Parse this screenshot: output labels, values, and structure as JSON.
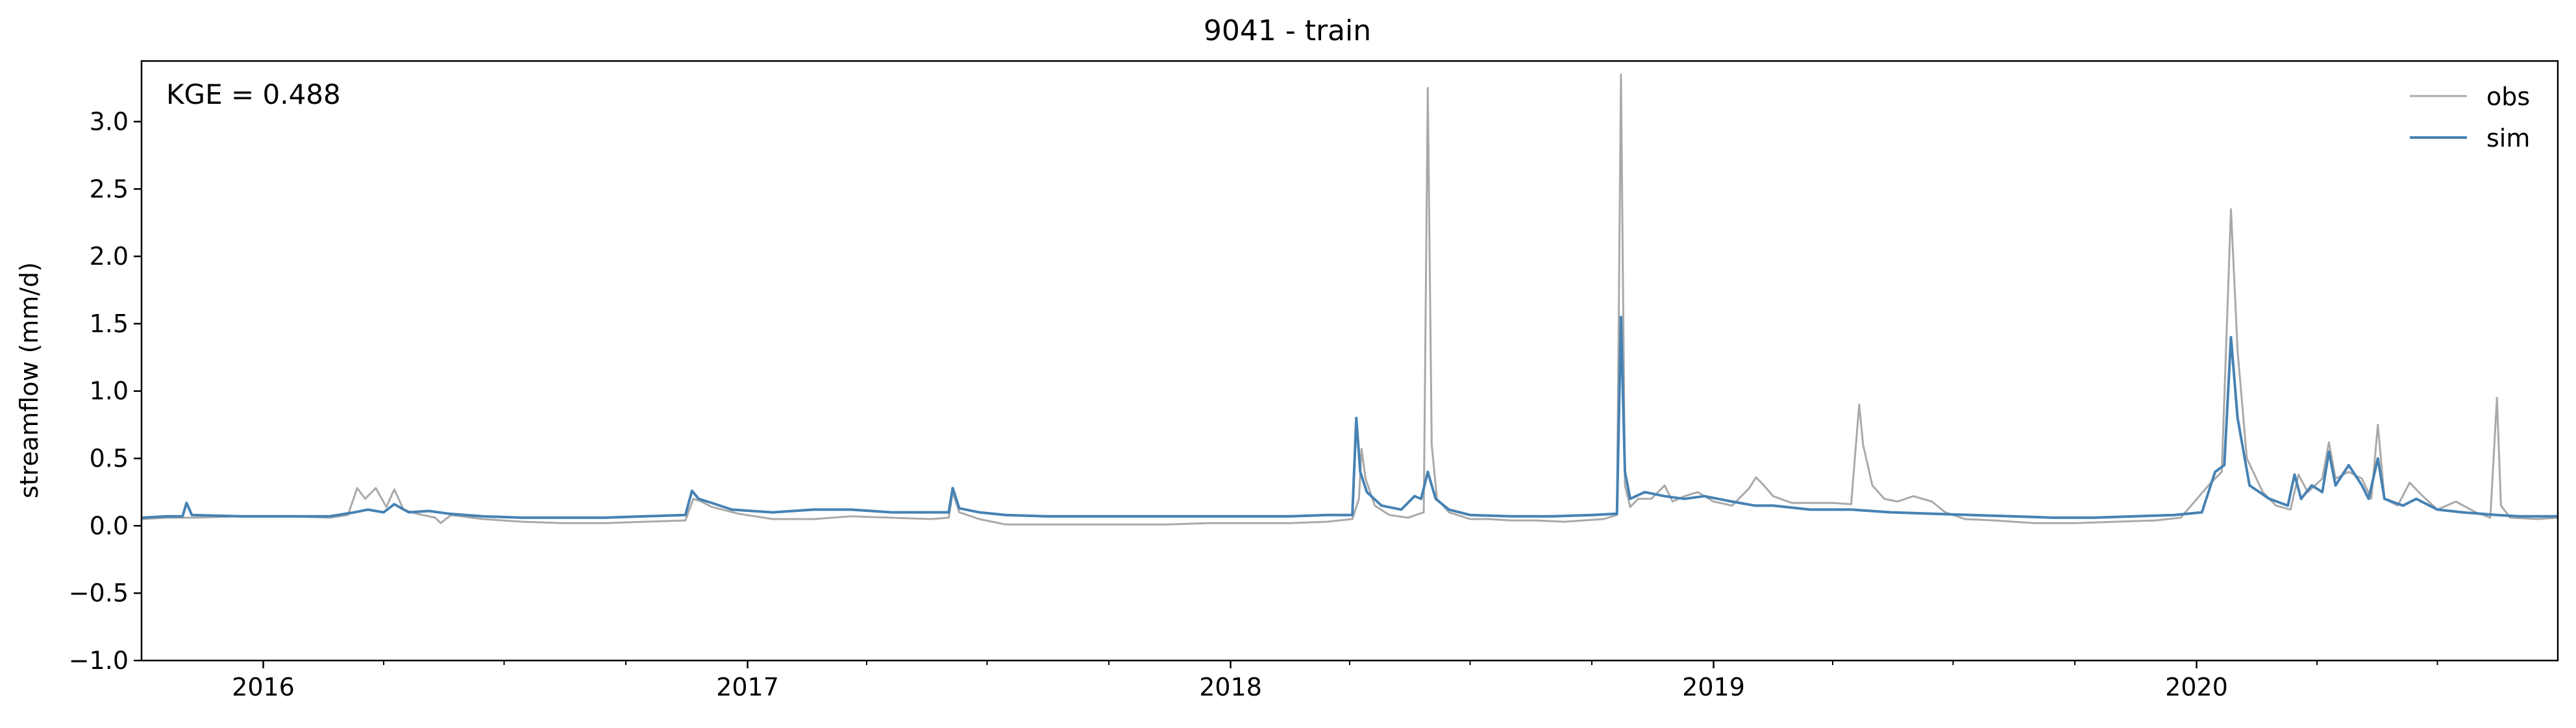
{
  "chart_data": {
    "type": "line",
    "title": "9041 - train",
    "xlabel": "",
    "ylabel": "streamflow (mm/d)",
    "annotation": "KGE = 0.488",
    "xlim": [
      "2015-10-01",
      "2020-09-30"
    ],
    "ylim": [
      -1.0,
      3.45
    ],
    "yticks": [
      -1.0,
      -0.5,
      0.0,
      0.5,
      1.0,
      1.5,
      2.0,
      2.5,
      3.0
    ],
    "ytick_labels": [
      "−1.0",
      "−0.5",
      "0.0",
      "0.5",
      "1.0",
      "1.5",
      "2.0",
      "2.5",
      "3.0"
    ],
    "xticks": [
      "2016-01-01",
      "2017-01-01",
      "2018-01-01",
      "2019-01-01",
      "2020-01-01"
    ],
    "xtick_labels": [
      "2016",
      "2017",
      "2018",
      "2019",
      "2020"
    ],
    "grid": false,
    "legend_position": "top-right",
    "series": [
      {
        "name": "obs",
        "color": "#a9a9a9",
        "points": [
          [
            "2015-10-01",
            0.05
          ],
          [
            "2015-10-20",
            0.06
          ],
          [
            "2015-11-10",
            0.06
          ],
          [
            "2015-12-15",
            0.07
          ],
          [
            "2016-01-20",
            0.07
          ],
          [
            "2016-02-20",
            0.06
          ],
          [
            "2016-03-05",
            0.08
          ],
          [
            "2016-03-12",
            0.28
          ],
          [
            "2016-03-18",
            0.2
          ],
          [
            "2016-03-26",
            0.28
          ],
          [
            "2016-04-03",
            0.14
          ],
          [
            "2016-04-09",
            0.27
          ],
          [
            "2016-04-16",
            0.12
          ],
          [
            "2016-04-26",
            0.09
          ],
          [
            "2016-05-10",
            0.06
          ],
          [
            "2016-05-14",
            0.02
          ],
          [
            "2016-05-22",
            0.08
          ],
          [
            "2016-06-15",
            0.05
          ],
          [
            "2016-07-15",
            0.03
          ],
          [
            "2016-08-15",
            0.02
          ],
          [
            "2016-09-15",
            0.02
          ],
          [
            "2016-10-15",
            0.03
          ],
          [
            "2016-11-15",
            0.04
          ],
          [
            "2016-11-21",
            0.2
          ],
          [
            "2016-11-27",
            0.18
          ],
          [
            "2016-12-05",
            0.14
          ],
          [
            "2016-12-25",
            0.09
          ],
          [
            "2017-01-20",
            0.05
          ],
          [
            "2017-02-20",
            0.05
          ],
          [
            "2017-03-20",
            0.07
          ],
          [
            "2017-04-20",
            0.06
          ],
          [
            "2017-05-20",
            0.05
          ],
          [
            "2017-06-02",
            0.06
          ],
          [
            "2017-06-05",
            0.25
          ],
          [
            "2017-06-10",
            0.1
          ],
          [
            "2017-06-25",
            0.05
          ],
          [
            "2017-07-15",
            0.01
          ],
          [
            "2017-08-15",
            0.01
          ],
          [
            "2017-09-15",
            0.01
          ],
          [
            "2017-10-15",
            0.01
          ],
          [
            "2017-11-15",
            0.01
          ],
          [
            "2017-12-15",
            0.02
          ],
          [
            "2018-01-15",
            0.02
          ],
          [
            "2018-02-15",
            0.02
          ],
          [
            "2018-03-15",
            0.03
          ],
          [
            "2018-04-03",
            0.05
          ],
          [
            "2018-04-08",
            0.2
          ],
          [
            "2018-04-10",
            0.57
          ],
          [
            "2018-04-13",
            0.35
          ],
          [
            "2018-04-20",
            0.15
          ],
          [
            "2018-05-01",
            0.08
          ],
          [
            "2018-05-15",
            0.06
          ],
          [
            "2018-05-27",
            0.1
          ],
          [
            "2018-05-30",
            3.25
          ],
          [
            "2018-06-02",
            0.6
          ],
          [
            "2018-06-06",
            0.2
          ],
          [
            "2018-06-15",
            0.1
          ],
          [
            "2018-07-01",
            0.05
          ],
          [
            "2018-07-15",
            0.05
          ],
          [
            "2018-08-01",
            0.04
          ],
          [
            "2018-08-20",
            0.04
          ],
          [
            "2018-09-10",
            0.03
          ],
          [
            "2018-10-10",
            0.05
          ],
          [
            "2018-10-20",
            0.08
          ],
          [
            "2018-10-23",
            3.35
          ],
          [
            "2018-10-26",
            0.3
          ],
          [
            "2018-10-30",
            0.14
          ],
          [
            "2018-11-05",
            0.2
          ],
          [
            "2018-11-15",
            0.2
          ],
          [
            "2018-11-25",
            0.3
          ],
          [
            "2018-12-01",
            0.18
          ],
          [
            "2018-12-10",
            0.22
          ],
          [
            "2018-12-20",
            0.25
          ],
          [
            "2019-01-01",
            0.18
          ],
          [
            "2019-01-15",
            0.15
          ],
          [
            "2019-01-28",
            0.28
          ],
          [
            "2019-02-02",
            0.36
          ],
          [
            "2019-02-08",
            0.3
          ],
          [
            "2019-02-15",
            0.22
          ],
          [
            "2019-03-01",
            0.17
          ],
          [
            "2019-03-15",
            0.17
          ],
          [
            "2019-04-01",
            0.17
          ],
          [
            "2019-04-15",
            0.16
          ],
          [
            "2019-04-21",
            0.9
          ],
          [
            "2019-04-24",
            0.6
          ],
          [
            "2019-05-01",
            0.3
          ],
          [
            "2019-05-10",
            0.2
          ],
          [
            "2019-05-20",
            0.18
          ],
          [
            "2019-06-01",
            0.22
          ],
          [
            "2019-06-15",
            0.18
          ],
          [
            "2019-06-25",
            0.1
          ],
          [
            "2019-07-10",
            0.05
          ],
          [
            "2019-08-01",
            0.04
          ],
          [
            "2019-09-01",
            0.02
          ],
          [
            "2019-10-01",
            0.02
          ],
          [
            "2019-11-01",
            0.03
          ],
          [
            "2019-12-01",
            0.04
          ],
          [
            "2019-12-20",
            0.06
          ],
          [
            "2020-01-10",
            0.3
          ],
          [
            "2020-01-20",
            0.4
          ],
          [
            "2020-01-27",
            2.35
          ],
          [
            "2020-02-01",
            1.3
          ],
          [
            "2020-02-08",
            0.5
          ],
          [
            "2020-02-20",
            0.25
          ],
          [
            "2020-03-01",
            0.15
          ],
          [
            "2020-03-12",
            0.12
          ],
          [
            "2020-03-18",
            0.38
          ],
          [
            "2020-03-25",
            0.25
          ],
          [
            "2020-04-05",
            0.35
          ],
          [
            "2020-04-10",
            0.62
          ],
          [
            "2020-04-15",
            0.35
          ],
          [
            "2020-04-25",
            0.4
          ],
          [
            "2020-05-05",
            0.35
          ],
          [
            "2020-05-12",
            0.2
          ],
          [
            "2020-05-17",
            0.75
          ],
          [
            "2020-05-22",
            0.2
          ],
          [
            "2020-06-01",
            0.15
          ],
          [
            "2020-06-10",
            0.32
          ],
          [
            "2020-06-20",
            0.22
          ],
          [
            "2020-07-01",
            0.12
          ],
          [
            "2020-07-15",
            0.18
          ],
          [
            "2020-07-30",
            0.1
          ],
          [
            "2020-08-10",
            0.06
          ],
          [
            "2020-08-15",
            0.95
          ],
          [
            "2020-08-18",
            0.15
          ],
          [
            "2020-08-25",
            0.06
          ],
          [
            "2020-09-15",
            0.05
          ],
          [
            "2020-09-30",
            0.06
          ]
        ]
      },
      {
        "name": "sim",
        "color": "#4682b4",
        "points": [
          [
            "2015-10-01",
            0.06
          ],
          [
            "2015-10-20",
            0.07
          ],
          [
            "2015-11-01",
            0.07
          ],
          [
            "2015-11-04",
            0.17
          ],
          [
            "2015-11-08",
            0.08
          ],
          [
            "2015-12-15",
            0.07
          ],
          [
            "2016-01-20",
            0.07
          ],
          [
            "2016-02-20",
            0.07
          ],
          [
            "2016-03-10",
            0.1
          ],
          [
            "2016-03-20",
            0.12
          ],
          [
            "2016-04-01",
            0.1
          ],
          [
            "2016-04-09",
            0.16
          ],
          [
            "2016-04-20",
            0.1
          ],
          [
            "2016-05-05",
            0.11
          ],
          [
            "2016-05-20",
            0.09
          ],
          [
            "2016-06-15",
            0.07
          ],
          [
            "2016-07-15",
            0.06
          ],
          [
            "2016-08-15",
            0.06
          ],
          [
            "2016-09-15",
            0.06
          ],
          [
            "2016-10-15",
            0.07
          ],
          [
            "2016-11-15",
            0.08
          ],
          [
            "2016-11-20",
            0.26
          ],
          [
            "2016-11-25",
            0.2
          ],
          [
            "2016-12-05",
            0.17
          ],
          [
            "2016-12-20",
            0.12
          ],
          [
            "2017-01-20",
            0.1
          ],
          [
            "2017-02-20",
            0.12
          ],
          [
            "2017-03-20",
            0.12
          ],
          [
            "2017-04-20",
            0.1
          ],
          [
            "2017-05-20",
            0.1
          ],
          [
            "2017-06-02",
            0.1
          ],
          [
            "2017-06-05",
            0.28
          ],
          [
            "2017-06-10",
            0.13
          ],
          [
            "2017-06-25",
            0.1
          ],
          [
            "2017-07-15",
            0.08
          ],
          [
            "2017-08-15",
            0.07
          ],
          [
            "2017-09-15",
            0.07
          ],
          [
            "2017-10-15",
            0.07
          ],
          [
            "2017-11-15",
            0.07
          ],
          [
            "2017-12-15",
            0.07
          ],
          [
            "2018-01-15",
            0.07
          ],
          [
            "2018-02-15",
            0.07
          ],
          [
            "2018-03-15",
            0.08
          ],
          [
            "2018-04-03",
            0.08
          ],
          [
            "2018-04-06",
            0.8
          ],
          [
            "2018-04-09",
            0.4
          ],
          [
            "2018-04-14",
            0.25
          ],
          [
            "2018-04-25",
            0.15
          ],
          [
            "2018-05-10",
            0.12
          ],
          [
            "2018-05-20",
            0.22
          ],
          [
            "2018-05-25",
            0.2
          ],
          [
            "2018-05-30",
            0.4
          ],
          [
            "2018-06-05",
            0.2
          ],
          [
            "2018-06-15",
            0.12
          ],
          [
            "2018-07-01",
            0.08
          ],
          [
            "2018-08-01",
            0.07
          ],
          [
            "2018-09-01",
            0.07
          ],
          [
            "2018-10-01",
            0.08
          ],
          [
            "2018-10-20",
            0.09
          ],
          [
            "2018-10-23",
            1.55
          ],
          [
            "2018-10-26",
            0.4
          ],
          [
            "2018-10-30",
            0.2
          ],
          [
            "2018-11-10",
            0.25
          ],
          [
            "2018-11-25",
            0.22
          ],
          [
            "2018-12-10",
            0.2
          ],
          [
            "2018-12-25",
            0.22
          ],
          [
            "2019-01-15",
            0.18
          ],
          [
            "2019-02-01",
            0.15
          ],
          [
            "2019-02-15",
            0.15
          ],
          [
            "2019-03-15",
            0.12
          ],
          [
            "2019-04-15",
            0.12
          ],
          [
            "2019-05-15",
            0.1
          ],
          [
            "2019-06-15",
            0.09
          ],
          [
            "2019-07-15",
            0.08
          ],
          [
            "2019-08-15",
            0.07
          ],
          [
            "2019-09-15",
            0.06
          ],
          [
            "2019-10-15",
            0.06
          ],
          [
            "2019-11-15",
            0.07
          ],
          [
            "2019-12-15",
            0.08
          ],
          [
            "2020-01-05",
            0.1
          ],
          [
            "2020-01-15",
            0.4
          ],
          [
            "2020-01-22",
            0.45
          ],
          [
            "2020-01-27",
            1.4
          ],
          [
            "2020-02-01",
            0.8
          ],
          [
            "2020-02-10",
            0.3
          ],
          [
            "2020-02-25",
            0.2
          ],
          [
            "2020-03-10",
            0.15
          ],
          [
            "2020-03-15",
            0.38
          ],
          [
            "2020-03-20",
            0.2
          ],
          [
            "2020-03-28",
            0.3
          ],
          [
            "2020-04-05",
            0.25
          ],
          [
            "2020-04-10",
            0.55
          ],
          [
            "2020-04-15",
            0.3
          ],
          [
            "2020-04-25",
            0.45
          ],
          [
            "2020-05-05",
            0.3
          ],
          [
            "2020-05-10",
            0.2
          ],
          [
            "2020-05-17",
            0.5
          ],
          [
            "2020-05-22",
            0.2
          ],
          [
            "2020-06-05",
            0.15
          ],
          [
            "2020-06-15",
            0.2
          ],
          [
            "2020-07-01",
            0.12
          ],
          [
            "2020-07-20",
            0.1
          ],
          [
            "2020-08-15",
            0.08
          ],
          [
            "2020-09-01",
            0.07
          ],
          [
            "2020-09-30",
            0.07
          ]
        ]
      }
    ]
  }
}
